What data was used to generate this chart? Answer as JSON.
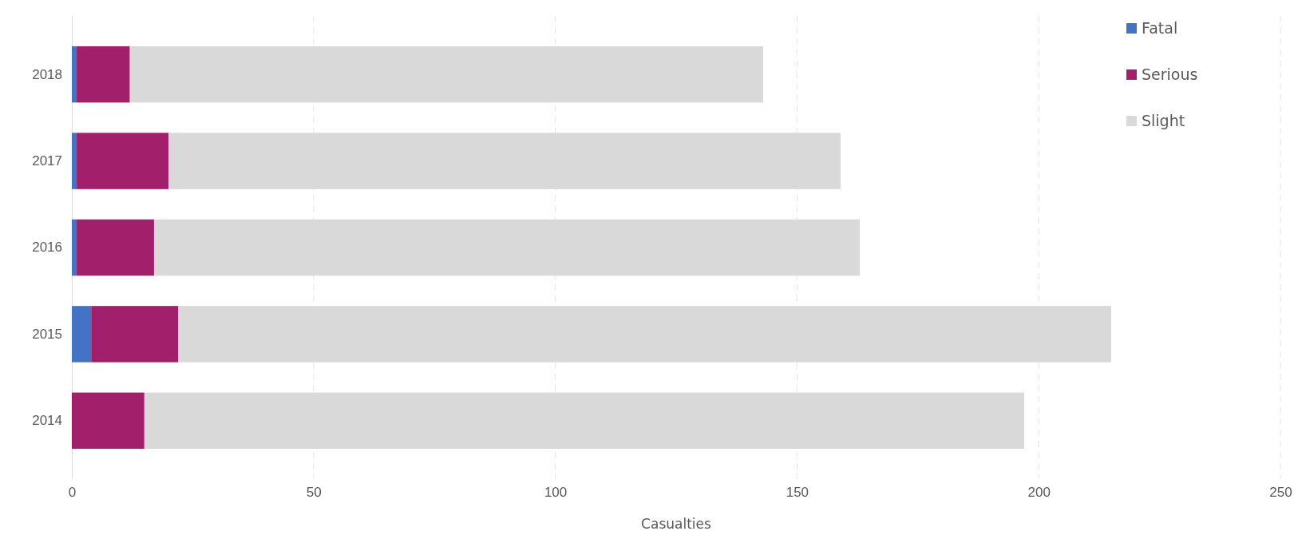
{
  "chart_data": {
    "type": "bar",
    "orientation": "horizontal",
    "stacked": true,
    "xlabel": "Casualties",
    "categories": [
      "2018",
      "2017",
      "2016",
      "2015",
      "2014"
    ],
    "series": [
      {
        "name": "Fatal",
        "color": "#4472c4",
        "values": [
          1,
          1,
          1,
          4,
          0
        ]
      },
      {
        "name": "Serious",
        "color": "#a21f6b",
        "values": [
          11,
          19,
          16,
          18,
          15
        ]
      },
      {
        "name": "Slight",
        "color": "#d9d9d9",
        "values": [
          131,
          139,
          146,
          193,
          182
        ]
      }
    ],
    "xlim": [
      0,
      250
    ],
    "xticks": [
      0,
      50,
      100,
      150,
      200,
      250
    ],
    "grid": "x",
    "legend": "top right"
  }
}
